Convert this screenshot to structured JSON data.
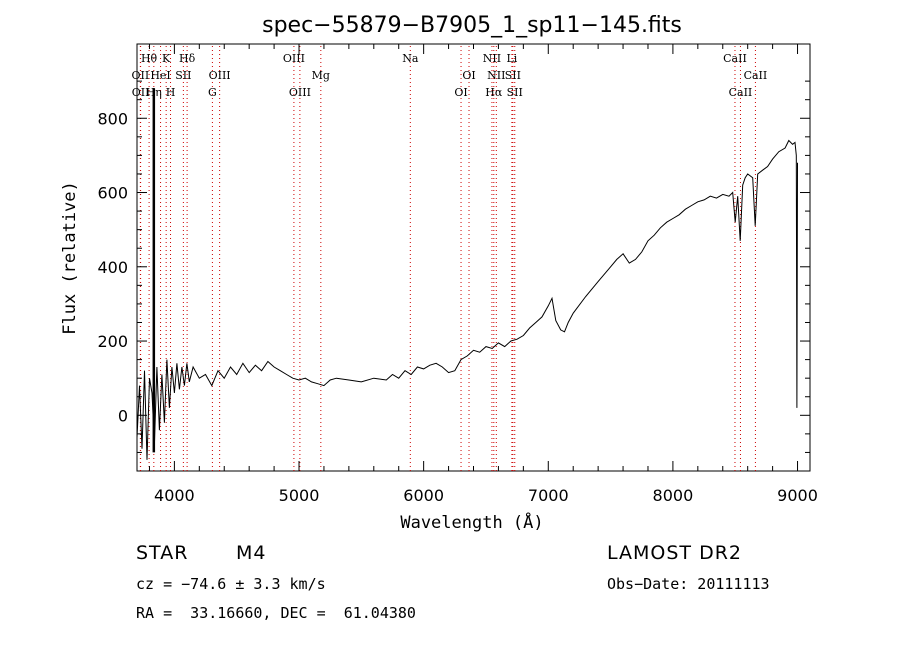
{
  "chart_data": {
    "type": "line",
    "title": "spec−55879−B7905_1_sp11−145.fits",
    "xlabel": "Wavelength (Å)",
    "ylabel": "Flux (relative)",
    "xlim": [
      3700,
      9100
    ],
    "ylim": [
      -150,
      1000
    ],
    "x_ticks": [
      4000,
      5000,
      6000,
      7000,
      8000,
      9000
    ],
    "y_ticks": [
      0,
      200,
      400,
      600,
      800
    ],
    "grid": false,
    "line_color": "#000000",
    "marker_color": "#cc0000",
    "spectrum": [
      [
        3700,
        -60
      ],
      [
        3720,
        80
      ],
      [
        3740,
        -90
      ],
      [
        3760,
        120
      ],
      [
        3780,
        -120
      ],
      [
        3800,
        100
      ],
      [
        3820,
        60
      ],
      [
        3840,
        -80
      ],
      [
        3860,
        130
      ],
      [
        3880,
        -40
      ],
      [
        3900,
        110
      ],
      [
        3920,
        -20
      ],
      [
        3940,
        150
      ],
      [
        3960,
        20
      ],
      [
        3980,
        130
      ],
      [
        4000,
        60
      ],
      [
        4020,
        140
      ],
      [
        4040,
        70
      ],
      [
        4060,
        130
      ],
      [
        4080,
        80
      ],
      [
        4100,
        140
      ],
      [
        4120,
        90
      ],
      [
        4150,
        130
      ],
      [
        4200,
        100
      ],
      [
        4250,
        110
      ],
      [
        4300,
        80
      ],
      [
        4350,
        120
      ],
      [
        4400,
        100
      ],
      [
        4450,
        130
      ],
      [
        4500,
        110
      ],
      [
        4550,
        140
      ],
      [
        4600,
        115
      ],
      [
        4650,
        135
      ],
      [
        4700,
        120
      ],
      [
        4750,
        145
      ],
      [
        4800,
        130
      ],
      [
        4850,
        120
      ],
      [
        4900,
        110
      ],
      [
        4950,
        100
      ],
      [
        5000,
        95
      ],
      [
        5050,
        100
      ],
      [
        5100,
        90
      ],
      [
        5150,
        85
      ],
      [
        5200,
        80
      ],
      [
        5250,
        95
      ],
      [
        5300,
        100
      ],
      [
        5400,
        95
      ],
      [
        5500,
        90
      ],
      [
        5600,
        100
      ],
      [
        5700,
        95
      ],
      [
        5750,
        110
      ],
      [
        5800,
        100
      ],
      [
        5850,
        120
      ],
      [
        5900,
        110
      ],
      [
        5950,
        130
      ],
      [
        6000,
        125
      ],
      [
        6050,
        135
      ],
      [
        6100,
        140
      ],
      [
        6150,
        130
      ],
      [
        6200,
        115
      ],
      [
        6250,
        120
      ],
      [
        6300,
        150
      ],
      [
        6350,
        160
      ],
      [
        6400,
        175
      ],
      [
        6450,
        170
      ],
      [
        6500,
        185
      ],
      [
        6550,
        180
      ],
      [
        6600,
        195
      ],
      [
        6650,
        185
      ],
      [
        6700,
        200
      ],
      [
        6750,
        205
      ],
      [
        6800,
        215
      ],
      [
        6850,
        235
      ],
      [
        6900,
        250
      ],
      [
        6950,
        265
      ],
      [
        7000,
        295
      ],
      [
        7030,
        315
      ],
      [
        7060,
        255
      ],
      [
        7100,
        230
      ],
      [
        7130,
        225
      ],
      [
        7160,
        250
      ],
      [
        7200,
        275
      ],
      [
        7300,
        320
      ],
      [
        7400,
        360
      ],
      [
        7500,
        400
      ],
      [
        7550,
        420
      ],
      [
        7600,
        435
      ],
      [
        7650,
        410
      ],
      [
        7700,
        420
      ],
      [
        7750,
        440
      ],
      [
        7800,
        470
      ],
      [
        7850,
        485
      ],
      [
        7900,
        505
      ],
      [
        7950,
        520
      ],
      [
        8000,
        530
      ],
      [
        8050,
        540
      ],
      [
        8100,
        555
      ],
      [
        8150,
        565
      ],
      [
        8200,
        575
      ],
      [
        8250,
        580
      ],
      [
        8300,
        590
      ],
      [
        8350,
        585
      ],
      [
        8400,
        595
      ],
      [
        8450,
        590
      ],
      [
        8480,
        600
      ],
      [
        8500,
        520
      ],
      [
        8520,
        590
      ],
      [
        8540,
        470
      ],
      [
        8560,
        620
      ],
      [
        8580,
        640
      ],
      [
        8600,
        650
      ],
      [
        8640,
        640
      ],
      [
        8660,
        510
      ],
      [
        8680,
        650
      ],
      [
        8720,
        660
      ],
      [
        8760,
        670
      ],
      [
        8800,
        690
      ],
      [
        8850,
        710
      ],
      [
        8900,
        720
      ],
      [
        8930,
        740
      ],
      [
        8960,
        730
      ],
      [
        8980,
        735
      ],
      [
        8990,
        700
      ],
      [
        8995,
        20
      ],
      [
        9000,
        680
      ]
    ],
    "lines": [
      {
        "label": "Hθ",
        "x": 3797,
        "row": 1
      },
      {
        "label": "OII",
        "x": 3727,
        "row": 2
      },
      {
        "label": "OII",
        "x": 3729,
        "row": 3
      },
      {
        "label": "K",
        "x": 3934,
        "row": 1
      },
      {
        "label": "HeI",
        "x": 3889,
        "row": 2
      },
      {
        "label": "Hη",
        "x": 3835,
        "row": 3
      },
      {
        "label": "Hδ",
        "x": 4102,
        "row": 1
      },
      {
        "label": "SII",
        "x": 4072,
        "row": 2
      },
      {
        "label": "H",
        "x": 3969,
        "row": 3
      },
      {
        "label": "OIII",
        "x": 4363,
        "row": 2
      },
      {
        "label": "G",
        "x": 4305,
        "row": 3
      },
      {
        "label": "OIII",
        "x": 4959,
        "row": 1
      },
      {
        "label": "OIII",
        "x": 5007,
        "row": 3
      },
      {
        "label": "Mg",
        "x": 5175,
        "row": 2
      },
      {
        "label": "Na",
        "x": 5893,
        "row": 1
      },
      {
        "label": "OI",
        "x": 6364,
        "row": 2
      },
      {
        "label": "OI",
        "x": 6300,
        "row": 3
      },
      {
        "label": "NII",
        "x": 6548,
        "row": 1
      },
      {
        "label": "NII",
        "x": 6583,
        "row": 2
      },
      {
        "label": "Hα",
        "x": 6563,
        "row": 3
      },
      {
        "label": "Li",
        "x": 6708,
        "row": 1
      },
      {
        "label": "SII",
        "x": 6716,
        "row": 2
      },
      {
        "label": "SII",
        "x": 6731,
        "row": 3
      },
      {
        "label": "CaII",
        "x": 8498,
        "row": 1
      },
      {
        "label": "CaII",
        "x": 8662,
        "row": 2
      },
      {
        "label": "CaII",
        "x": 8542,
        "row": 3
      }
    ]
  },
  "info": {
    "class_label": "STAR",
    "subclass": "M4",
    "survey": "LAMOST DR2",
    "redshift": "cz = −74.6 ± 3.3 km/s",
    "obs_date": "Obs−Date: 20111113",
    "coords": "RA =  33.16660, DEC =  61.04380"
  }
}
